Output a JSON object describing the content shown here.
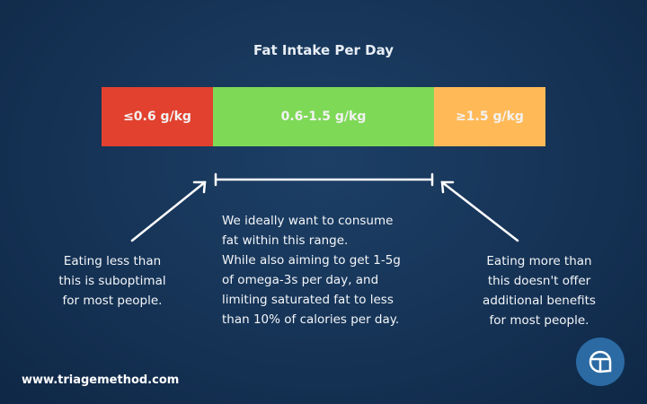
{
  "title": "Fat Intake Per Day",
  "segments": [
    {
      "label": "≤0.6 g/kg",
      "color": "#e2412f"
    },
    {
      "label": "0.6-1.5 g/kg",
      "color": "#7ed957"
    },
    {
      "label": "≥1.5 g/kg",
      "color": "#ffb957"
    }
  ],
  "left_note": [
    "Eating less than",
    "this is suboptimal",
    "for most people."
  ],
  "middle_note": [
    "We ideally want to consume",
    "fat within this range.",
    "While also aiming to get 1-5g",
    "of omega-3s per day, and",
    "limiting saturated fat to less",
    "than 10% of calories per day."
  ],
  "right_note": [
    "Eating more than",
    "this doesn't offer",
    "additional benefits",
    "for most people."
  ],
  "footer": {
    "url": "www.triagemethod.com",
    "logo_icon": "triage-logo-icon"
  }
}
